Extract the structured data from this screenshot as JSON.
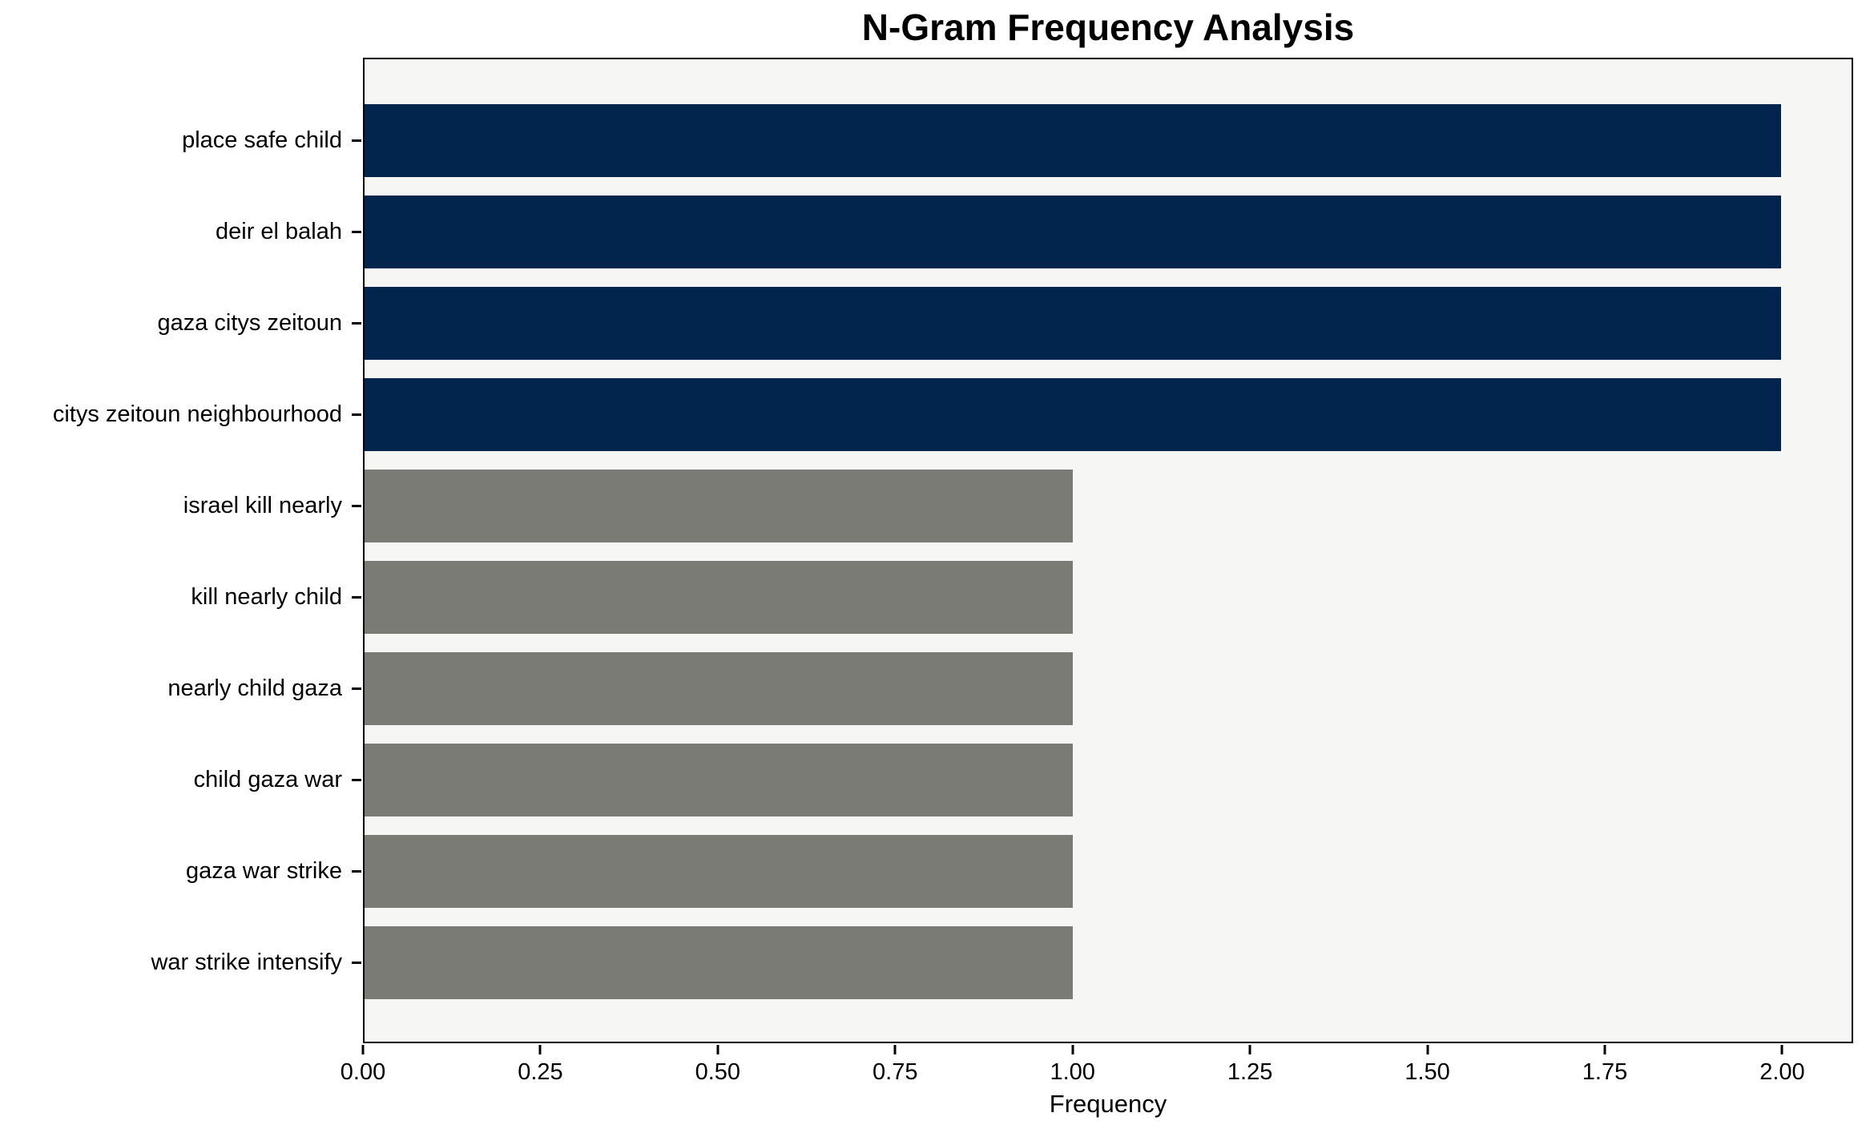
{
  "title": "N-Gram Frequency Analysis",
  "chart_data": {
    "type": "bar",
    "orientation": "horizontal",
    "title": "N-Gram Frequency Analysis",
    "xlabel": "Frequency",
    "ylabel": "",
    "categories": [
      "place safe child",
      "deir el balah",
      "gaza citys zeitoun",
      "citys zeitoun neighbourhood",
      "israel kill nearly",
      "kill nearly child",
      "nearly child gaza",
      "child gaza war",
      "gaza war strike",
      "war strike intensify"
    ],
    "values": [
      2,
      2,
      2,
      2,
      1,
      1,
      1,
      1,
      1,
      1
    ],
    "bar_colors": [
      "#02254e",
      "#02254e",
      "#02254e",
      "#02254e",
      "#7b7b76",
      "#7b7b76",
      "#7b7b76",
      "#7b7b76",
      "#7b7b76",
      "#7b7b76"
    ],
    "xlim": [
      0,
      2.1
    ],
    "xticks": [
      {
        "value": 0.0,
        "label": "0.00"
      },
      {
        "value": 0.25,
        "label": "0.25"
      },
      {
        "value": 0.5,
        "label": "0.50"
      },
      {
        "value": 0.75,
        "label": "0.75"
      },
      {
        "value": 1.0,
        "label": "1.00"
      },
      {
        "value": 1.25,
        "label": "1.25"
      },
      {
        "value": 1.5,
        "label": "1.50"
      },
      {
        "value": 1.75,
        "label": "1.75"
      },
      {
        "value": 2.0,
        "label": "2.00"
      }
    ],
    "grid": false,
    "legend": null,
    "colors": {
      "plot_background": "#f6f6f5",
      "page_background": "#ffffff",
      "spine": "#000000",
      "text": "#000000",
      "high_freq_bar": "#02254e",
      "low_freq_bar": "#7b7b76"
    }
  }
}
